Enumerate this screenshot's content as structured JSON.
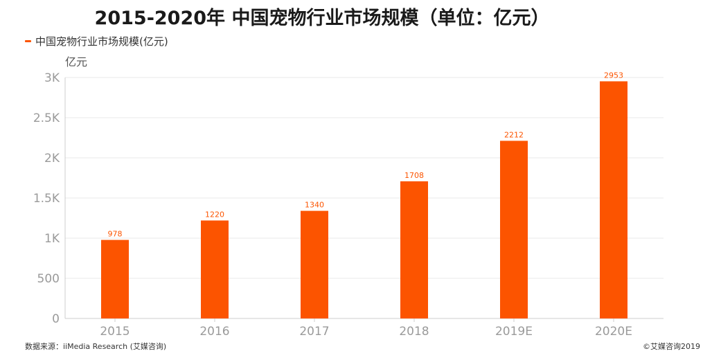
{
  "title": "2015-2020年 中国宠物行业市场规模（单位：亿元）",
  "legend_label": "中国宠物行业市场规模(亿元)",
  "source": "数据来源：iiMedia Research (艾媒咨询)",
  "copyright": "©艾媒咨询2019",
  "colors": {
    "bar": "#fc5400",
    "grid": "#e8e8e8",
    "axis": "#cccccc"
  },
  "chart_data": {
    "type": "bar",
    "categories": [
      "2015",
      "2016",
      "2017",
      "2018",
      "2019E",
      "2020E"
    ],
    "series": [
      {
        "name": "中国宠物行业市场规模(亿元)",
        "values": [
          978,
          1220,
          1340,
          1708,
          2212,
          2953
        ]
      }
    ],
    "ylabel": "亿元",
    "ylim": [
      0,
      3000
    ],
    "yticks": [
      0,
      500,
      1000,
      1500,
      2000,
      2500,
      3000
    ],
    "ytick_labels": [
      "0",
      "500",
      "1K",
      "1.5K",
      "2K",
      "2.5K",
      "3K"
    ],
    "grid": true,
    "legend_position": "top-left"
  }
}
